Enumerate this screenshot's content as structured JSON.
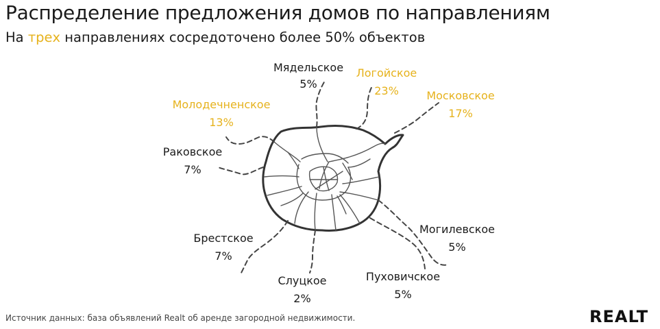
{
  "header": {
    "title": "Распределение предложения домов по направлениям",
    "subtitle_before": "На ",
    "subtitle_highlight": "трех",
    "subtitle_after": " направлениях сосредоточено более 50% объектов"
  },
  "footer": {
    "source": "Источник данных: база объявлений Realt об аренде загородной недвижимости.",
    "logo": "REALT"
  },
  "colors": {
    "highlight": "#e6b21c",
    "text": "#1a1a1a",
    "map_line": "#333333"
  },
  "chart_data": {
    "type": "map",
    "title": "Распределение предложения домов по направлениям",
    "subtitle": "На трех направлениях сосредоточено более 50% объектов",
    "unit": "%",
    "directions": [
      {
        "name": "Мядельское",
        "value": 5,
        "label": "5%",
        "highlight": false
      },
      {
        "name": "Логойское",
        "value": 23,
        "label": "23%",
        "highlight": true
      },
      {
        "name": "Московское",
        "value": 17,
        "label": "17%",
        "highlight": true
      },
      {
        "name": "Молодечненское",
        "value": 13,
        "label": "13%",
        "highlight": true
      },
      {
        "name": "Раковское",
        "value": 7,
        "label": "7%",
        "highlight": false
      },
      {
        "name": "Брестское",
        "value": 7,
        "label": "7%",
        "highlight": false
      },
      {
        "name": "Слуцкое",
        "value": 2,
        "label": "2%",
        "highlight": false
      },
      {
        "name": "Пуховичское",
        "value": 5,
        "label": "5%",
        "highlight": false
      },
      {
        "name": "Могилевское",
        "value": 5,
        "label": "5%",
        "highlight": false
      }
    ]
  }
}
